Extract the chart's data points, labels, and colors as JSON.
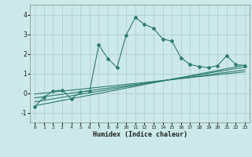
{
  "xlabel": "Humidex (Indice chaleur)",
  "bg_color": "#cce8e8",
  "line_color": "#2e7d6e",
  "grid_color": "#aacccc",
  "xlim": [
    -0.5,
    23.5
  ],
  "ylim": [
    -1.5,
    4.5
  ],
  "xticks": [
    0,
    1,
    2,
    3,
    4,
    5,
    6,
    7,
    8,
    9,
    10,
    11,
    12,
    13,
    14,
    15,
    16,
    17,
    18,
    19,
    20,
    21,
    22,
    23
  ],
  "yticks": [
    -1,
    0,
    1,
    2,
    3,
    4
  ],
  "series1_x": [
    0,
    1,
    2,
    3,
    4,
    5,
    6,
    7,
    8,
    9,
    10,
    11,
    12,
    13,
    14,
    15,
    16,
    17,
    18,
    19,
    20,
    21,
    22,
    23
  ],
  "series1_y": [
    -0.7,
    -0.2,
    0.1,
    0.15,
    -0.3,
    0.05,
    0.1,
    2.45,
    1.75,
    1.3,
    2.95,
    3.85,
    3.5,
    3.3,
    2.75,
    2.65,
    1.8,
    1.45,
    1.35,
    1.3,
    1.4,
    1.9,
    1.45,
    1.4
  ],
  "series2_x": [
    0,
    23
  ],
  "series2_y": [
    -0.65,
    1.42
  ],
  "series3_x": [
    0,
    23
  ],
  "series3_y": [
    -0.45,
    1.32
  ],
  "series4_x": [
    0,
    23
  ],
  "series4_y": [
    -0.25,
    1.18
  ],
  "series5_x": [
    0,
    23
  ],
  "series5_y": [
    -0.05,
    1.08
  ]
}
